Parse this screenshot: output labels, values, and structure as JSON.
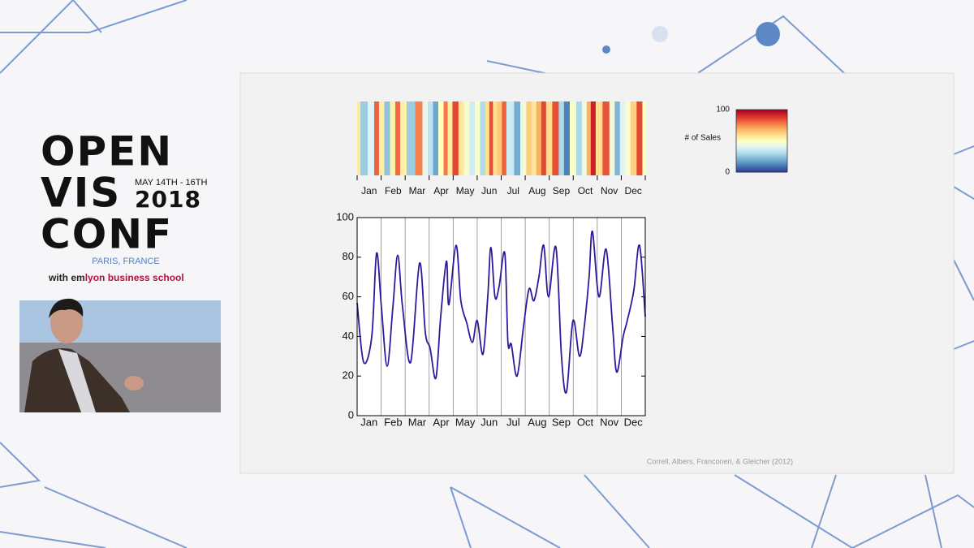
{
  "logo": {
    "line1": "OPEN",
    "line2": "VIS",
    "line3": "CONF",
    "dates": "MAY 14TH - 16TH",
    "year": "2018",
    "location": "PARIS, FRANCE",
    "partner_prefix": "with",
    "partner_em": "em",
    "partner_name": "lyon business school"
  },
  "citation": "Correll, Albers, Franconeri, & Gleicher (2012)",
  "chart_data": [
    {
      "type": "heatmap",
      "x": [
        0,
        0.27,
        0.61,
        0.81,
        1.01,
        1.25,
        1.49,
        1.69,
        1.89,
        2.23,
        2.6,
        2.84,
        3.04,
        3.28,
        3.48,
        3.72,
        3.82,
        4.12,
        4.32,
        4.56,
        4.8,
        5.0,
        5.24,
        5.44,
        5.57,
        5.74,
        5.91,
        6.15,
        6.28,
        6.42,
        6.66,
        6.93,
        7.16,
        7.36,
        7.57,
        7.77,
        7.97,
        8.28,
        8.51,
        8.72,
        8.99,
        9.26,
        9.46,
        9.66,
        9.8,
        10.07,
        10.37,
        10.64,
        10.81,
        11.08,
        11.25,
        11.52,
        11.76,
        12
      ],
      "values": [
        57,
        27,
        40,
        82,
        55,
        25,
        55,
        81,
        55,
        27,
        77,
        42,
        34,
        19,
        50,
        78,
        56,
        86,
        58,
        47,
        37,
        48,
        31,
        60,
        85,
        60,
        65,
        82,
        37,
        36,
        20,
        45,
        64,
        58,
        70,
        86,
        60,
        85,
        30,
        12,
        48,
        30,
        45,
        70,
        93,
        60,
        84,
        45,
        22,
        40,
        48,
        63,
        86,
        50
      ],
      "xlim": [
        0,
        12
      ],
      "xticks": [
        {
          "value": 0.5,
          "label": "Jan"
        },
        {
          "value": 1.5,
          "label": "Feb"
        },
        {
          "value": 2.5,
          "label": "Mar"
        },
        {
          "value": 3.5,
          "label": "Apr"
        },
        {
          "value": 4.5,
          "label": "May"
        },
        {
          "value": 5.5,
          "label": "Jun"
        },
        {
          "value": 6.5,
          "label": "Jul"
        },
        {
          "value": 7.5,
          "label": "Aug"
        },
        {
          "value": 8.5,
          "label": "Sep"
        },
        {
          "value": 9.5,
          "label": "Oct"
        },
        {
          "value": 10.5,
          "label": "Nov"
        },
        {
          "value": 11.5,
          "label": "Dec"
        }
      ],
      "minor_xticks": [
        0,
        1,
        2,
        3,
        4,
        5,
        6,
        7,
        8,
        9,
        10,
        11,
        12
      ],
      "clim": [
        0,
        100
      ],
      "colormap": [
        "#313695",
        "#4575b4",
        "#74add1",
        "#abd9e9",
        "#e0f3f8",
        "#ffffbf",
        "#fee090",
        "#fdae61",
        "#f46d43",
        "#d73027",
        "#a50026"
      ],
      "colorbar": {
        "label": "# of Sales",
        "ticks": [
          0,
          100
        ]
      }
    },
    {
      "type": "line",
      "x": [
        0,
        0.27,
        0.61,
        0.81,
        1.01,
        1.25,
        1.49,
        1.69,
        1.89,
        2.23,
        2.6,
        2.84,
        3.04,
        3.28,
        3.48,
        3.72,
        3.82,
        4.12,
        4.32,
        4.56,
        4.8,
        5.0,
        5.24,
        5.44,
        5.57,
        5.74,
        5.91,
        6.15,
        6.28,
        6.42,
        6.66,
        6.93,
        7.16,
        7.36,
        7.57,
        7.77,
        7.97,
        8.28,
        8.51,
        8.72,
        8.99,
        9.26,
        9.46,
        9.66,
        9.8,
        10.07,
        10.37,
        10.64,
        10.81,
        11.08,
        11.25,
        11.52,
        11.76,
        12
      ],
      "series": [
        {
          "color": "#2b1b9c",
          "values": [
            57,
            27,
            40,
            82,
            55,
            25,
            55,
            81,
            55,
            27,
            77,
            42,
            34,
            19,
            50,
            78,
            56,
            86,
            58,
            47,
            37,
            48,
            31,
            60,
            85,
            60,
            65,
            82,
            37,
            36,
            20,
            45,
            64,
            58,
            70,
            86,
            60,
            85,
            30,
            12,
            48,
            30,
            45,
            70,
            93,
            60,
            84,
            45,
            22,
            40,
            48,
            63,
            86,
            50
          ]
        }
      ],
      "xlim": [
        0,
        12
      ],
      "xticks": [
        {
          "value": 0.5,
          "label": "Jan"
        },
        {
          "value": 1.5,
          "label": "Feb"
        },
        {
          "value": 2.5,
          "label": "Mar"
        },
        {
          "value": 3.5,
          "label": "Apr"
        },
        {
          "value": 4.5,
          "label": "May"
        },
        {
          "value": 5.5,
          "label": "Jun"
        },
        {
          "value": 6.5,
          "label": "Jul"
        },
        {
          "value": 7.5,
          "label": "Aug"
        },
        {
          "value": 8.5,
          "label": "Sep"
        },
        {
          "value": 9.5,
          "label": "Oct"
        },
        {
          "value": 10.5,
          "label": "Nov"
        },
        {
          "value": 11.5,
          "label": "Dec"
        }
      ],
      "minor_xticks": [
        0,
        1,
        2,
        3,
        4,
        5,
        6,
        7,
        8,
        9,
        10,
        11,
        12
      ],
      "ylim": [
        0,
        100
      ],
      "yticks": [
        0,
        20,
        40,
        60,
        80,
        100
      ]
    }
  ]
}
